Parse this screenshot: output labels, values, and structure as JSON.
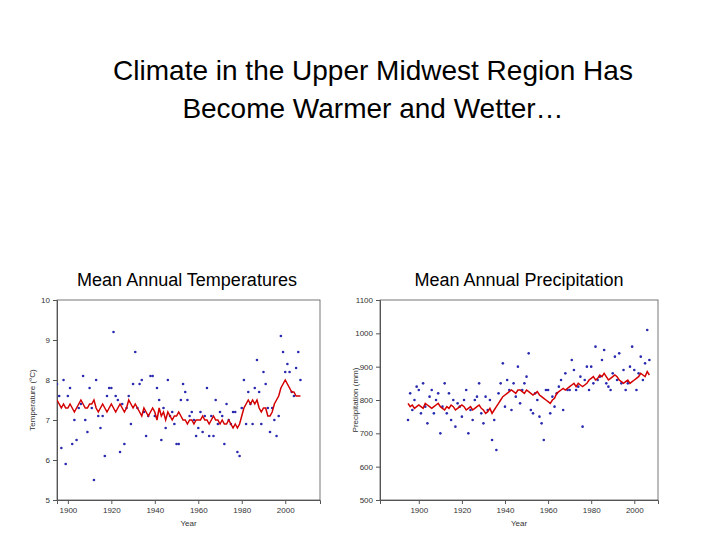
{
  "title": "Climate in the Upper Midwest Region Has Become Warmer and Wetter…",
  "chart_data": [
    {
      "type": "line",
      "title": "Mean Annual Temperatures",
      "x_label": "Year",
      "y_label": "Temperature (°C)",
      "x": [
        1895,
        1896,
        1897,
        1898,
        1899,
        1900,
        1901,
        1902,
        1903,
        1904,
        1905,
        1906,
        1907,
        1908,
        1909,
        1910,
        1911,
        1912,
        1913,
        1914,
        1915,
        1916,
        1917,
        1918,
        1919,
        1920,
        1921,
        1922,
        1923,
        1924,
        1925,
        1926,
        1927,
        1928,
        1929,
        1930,
        1931,
        1932,
        1933,
        1934,
        1935,
        1936,
        1937,
        1938,
        1939,
        1940,
        1941,
        1942,
        1943,
        1944,
        1945,
        1946,
        1947,
        1948,
        1949,
        1950,
        1951,
        1952,
        1953,
        1954,
        1955,
        1956,
        1957,
        1958,
        1959,
        1960,
        1961,
        1962,
        1963,
        1964,
        1965,
        1966,
        1967,
        1968,
        1969,
        1970,
        1971,
        1972,
        1973,
        1974,
        1975,
        1976,
        1977,
        1978,
        1979,
        1980,
        1981,
        1982,
        1983,
        1984,
        1985,
        1986,
        1987,
        1988,
        1989,
        1990,
        1991,
        1992,
        1993,
        1994,
        1995,
        1996,
        1997,
        1998,
        1999,
        2000,
        2001,
        2002,
        2003,
        2004,
        2005,
        2006,
        2007
      ],
      "xlim": [
        1895,
        2016
      ],
      "xticks": [
        1900,
        1920,
        1940,
        1960,
        1980,
        2000
      ],
      "ylim": [
        5,
        10
      ],
      "yticks": [
        5,
        6,
        7,
        8,
        9,
        10
      ],
      "series": [
        {
          "type": "line",
          "color": "#d40000",
          "values": [
            7.5,
            7.4,
            7.3,
            7.4,
            7.3,
            7.3,
            7.4,
            7.3,
            7.2,
            7.3,
            7.4,
            7.5,
            7.4,
            7.3,
            7.3,
            7.4,
            7.4,
            7.5,
            7.3,
            7.2,
            7.3,
            7.4,
            7.3,
            7.2,
            7.3,
            7.4,
            7.3,
            7.2,
            7.3,
            7.4,
            7.3,
            7.2,
            7.3,
            7.5,
            7.4,
            7.3,
            7.4,
            7.3,
            7.2,
            7.1,
            7.3,
            7.2,
            7.1,
            7.2,
            7.3,
            7.2,
            7.0,
            7.3,
            7.1,
            7.2,
            7.0,
            7.2,
            7.1,
            7.0,
            7.1,
            7.1,
            7.2,
            7.1,
            7.0,
            7.0,
            6.9,
            7.0,
            7.0,
            6.9,
            7.0,
            7.0,
            7.0,
            7.1,
            7.0,
            7.0,
            6.9,
            7.0,
            7.1,
            7.0,
            7.0,
            6.9,
            7.0,
            6.9,
            6.9,
            7.0,
            6.9,
            6.8,
            6.9,
            6.8,
            6.9,
            7.1,
            7.3,
            7.4,
            7.5,
            7.4,
            7.5,
            7.4,
            7.5,
            7.3,
            7.2,
            7.3,
            7.3,
            7.1,
            7.1,
            7.2,
            7.4,
            7.5,
            7.6,
            7.8,
            7.9,
            8.0,
            7.9,
            7.8,
            7.7,
            7.7,
            7.6,
            7.6,
            7.6
          ]
        },
        {
          "type": "scatter",
          "color": "#2a2ab0",
          "marker": "circle",
          "values": [
            7.9,
            7.6,
            6.3,
            8.0,
            5.9,
            7.6,
            7.8,
            6.4,
            7.0,
            6.5,
            7.3,
            7.4,
            8.1,
            7.0,
            6.7,
            7.8,
            7.3,
            5.5,
            8.0,
            7.1,
            6.8,
            7.1,
            6.1,
            7.6,
            7.8,
            7.8,
            9.2,
            7.6,
            7.5,
            6.2,
            7.4,
            6.4,
            7.3,
            7.6,
            6.9,
            7.9,
            8.7,
            7.3,
            7.9,
            8.0,
            7.2,
            6.6,
            7.1,
            8.1,
            8.1,
            7.1,
            7.8,
            7.5,
            6.5,
            7.3,
            6.8,
            8.0,
            7.1,
            7.2,
            6.9,
            6.4,
            6.4,
            7.5,
            7.9,
            7.7,
            7.5,
            7.1,
            7.2,
            7.0,
            6.6,
            6.8,
            7.2,
            6.7,
            7.1,
            7.8,
            6.6,
            7.1,
            6.6,
            7.5,
            6.9,
            7.2,
            7.1,
            6.4,
            7.4,
            7.0,
            6.9,
            7.2,
            7.2,
            6.2,
            6.1,
            7.3,
            8.0,
            6.9,
            7.7,
            7.4,
            6.9,
            7.8,
            8.5,
            7.7,
            6.9,
            8.2,
            7.9,
            7.3,
            6.7,
            7.3,
            7.0,
            6.6,
            7.1,
            9.1,
            8.7,
            8.2,
            8.4,
            8.2,
            7.7,
            7.6,
            8.3,
            8.7,
            8.0
          ]
        }
      ]
    },
    {
      "type": "line",
      "title": "Mean Annual Precipitation",
      "x_label": "Year",
      "y_label": "Precipitation (mm)",
      "x": [
        1895,
        1896,
        1897,
        1898,
        1899,
        1900,
        1901,
        1902,
        1903,
        1904,
        1905,
        1906,
        1907,
        1908,
        1909,
        1910,
        1911,
        1912,
        1913,
        1914,
        1915,
        1916,
        1917,
        1918,
        1919,
        1920,
        1921,
        1922,
        1923,
        1924,
        1925,
        1926,
        1927,
        1928,
        1929,
        1930,
        1931,
        1932,
        1933,
        1934,
        1935,
        1936,
        1937,
        1938,
        1939,
        1940,
        1941,
        1942,
        1943,
        1944,
        1945,
        1946,
        1947,
        1948,
        1949,
        1950,
        1951,
        1952,
        1953,
        1954,
        1955,
        1956,
        1957,
        1958,
        1959,
        1960,
        1961,
        1962,
        1963,
        1964,
        1965,
        1966,
        1967,
        1968,
        1969,
        1970,
        1971,
        1972,
        1973,
        1974,
        1975,
        1976,
        1977,
        1978,
        1979,
        1980,
        1981,
        1982,
        1983,
        1984,
        1985,
        1986,
        1987,
        1988,
        1989,
        1990,
        1991,
        1992,
        1993,
        1994,
        1995,
        1996,
        1997,
        1998,
        1999,
        2000,
        2001,
        2002,
        2003,
        2004,
        2005,
        2006,
        2007
      ],
      "xlim": [
        1882,
        2011
      ],
      "xticks": [
        1900,
        1920,
        1940,
        1960,
        1980,
        2000
      ],
      "ylim": [
        500,
        1100
      ],
      "yticks": [
        500,
        600,
        700,
        800,
        900,
        1000,
        1100
      ],
      "series": [
        {
          "type": "line",
          "color": "#d40000",
          "values": [
            790,
            780,
            785,
            775,
            780,
            785,
            780,
            775,
            790,
            785,
            780,
            775,
            780,
            785,
            790,
            780,
            775,
            770,
            780,
            775,
            785,
            780,
            770,
            775,
            780,
            785,
            780,
            770,
            775,
            780,
            770,
            775,
            780,
            785,
            775,
            770,
            760,
            765,
            775,
            760,
            770,
            780,
            790,
            800,
            810,
            815,
            820,
            825,
            830,
            825,
            820,
            830,
            830,
            825,
            820,
            830,
            825,
            820,
            815,
            820,
            825,
            815,
            810,
            805,
            800,
            795,
            790,
            800,
            805,
            820,
            825,
            830,
            835,
            830,
            835,
            840,
            845,
            850,
            840,
            850,
            845,
            840,
            845,
            850,
            860,
            865,
            870,
            860,
            865,
            875,
            870,
            880,
            870,
            860,
            865,
            870,
            875,
            870,
            860,
            855,
            850,
            855,
            860,
            850,
            855,
            860,
            865,
            870,
            880,
            875,
            870,
            885,
            875
          ]
        },
        {
          "type": "scatter",
          "color": "#2a2ab0",
          "marker": "circle",
          "values": [
            740,
            820,
            770,
            800,
            840,
            830,
            760,
            850,
            780,
            730,
            810,
            830,
            760,
            800,
            820,
            700,
            780,
            850,
            760,
            820,
            740,
            800,
            720,
            790,
            780,
            750,
            800,
            830,
            700,
            770,
            740,
            800,
            810,
            850,
            760,
            730,
            810,
            770,
            800,
            680,
            740,
            650,
            820,
            850,
            910,
            780,
            860,
            830,
            770,
            850,
            810,
            900,
            790,
            830,
            850,
            870,
            940,
            770,
            760,
            820,
            800,
            750,
            730,
            680,
            830,
            830,
            760,
            810,
            780,
            820,
            840,
            860,
            770,
            880,
            830,
            830,
            920,
            890,
            830,
            840,
            870,
            720,
            860,
            900,
            830,
            900,
            850,
            960,
            860,
            870,
            920,
            950,
            850,
            840,
            830,
            880,
            930,
            860,
            940,
            850,
            890,
            830,
            850,
            900,
            960,
            890,
            830,
            880,
            930,
            860,
            910,
            1010,
            920
          ]
        }
      ]
    }
  ]
}
